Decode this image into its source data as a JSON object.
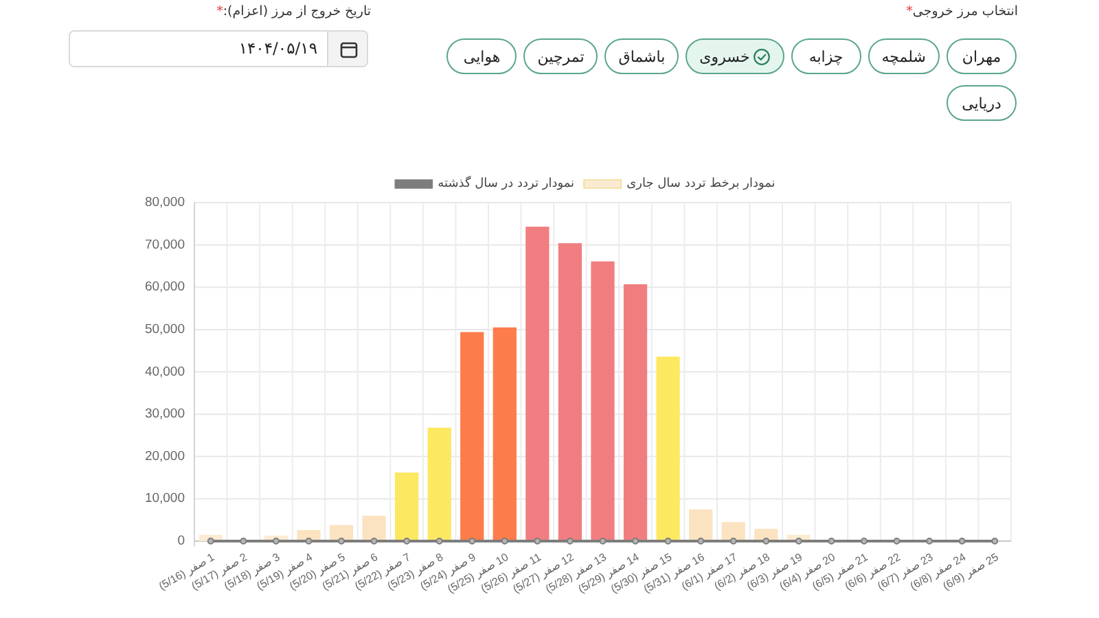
{
  "chart_data": [
    {
      "type": "other",
      "annotations": [
        "انتخاب مرز خروجی*",
        "تاریخ خروج از مرز (اعزام):*",
        "۱۴۰۴/۰۵/۱۹"
      ],
      "categories": [
        "مهران",
        "شلمچه",
        "چزابه",
        "خسروی",
        "باشماق",
        "تمرچین",
        "هوایی",
        "دریایی"
      ],
      "colors": [
        "#ffffff",
        "#ffffff",
        "#ffffff",
        "#e4f5ee",
        "#ffffff",
        "#ffffff",
        "#ffffff",
        "#ffffff"
      ]
    },
    {
      "type": "bar",
      "categories": [
        "1 صفر (5/16)",
        "2 صفر (5/17)",
        "3 صفر (5/18)",
        "4 صفر (5/19)",
        "5 صفر (5/20)",
        "6 صفر (5/21)",
        "7 صفر (5/22)",
        "8 صفر (5/23)",
        "9 صفر (5/24)",
        "10 صفر (5/25)",
        "11 صفر (5/26)",
        "12 صفر (5/27)",
        "13 صفر (5/28)",
        "14 صفر (5/29)",
        "15 صفر (5/30)",
        "16 صفر (5/31)",
        "17 صفر (6/1)",
        "18 صفر (6/2)",
        "19 صفر (6/3)",
        "20 صفر (6/4)",
        "21 صفر (6/5)",
        "22 صفر (6/6)",
        "23 صفر (6/7)",
        "24 صفر (6/8)",
        "25 صفر (6/9)"
      ],
      "ylim": [
        0,
        80000
      ],
      "yticks": [
        0,
        {
          "value": 10000,
          "label": "10,000"
        },
        {
          "value": 20000,
          "label": "20,000"
        },
        {
          "value": 30000,
          "label": "30,000"
        },
        {
          "value": 40000,
          "label": "40,000"
        },
        {
          "value": 50000,
          "label": "50,000"
        },
        {
          "value": 60000,
          "label": "60,000"
        },
        {
          "value": 70000,
          "label": "70,000"
        },
        {
          "value": 80000,
          "label": "80,000"
        }
      ],
      "grid": true,
      "legend": "top",
      "marker": "circle",
      "series": [
        {
          "name": "نمودار تردد در سال گذشته",
          "type": "line",
          "color": "#7d7d7d",
          "values": [
            0,
            0,
            0,
            0,
            0,
            0,
            0,
            0,
            0,
            0,
            0,
            0,
            0,
            0,
            0,
            0,
            0,
            0,
            0,
            0,
            0,
            0,
            0,
            0,
            0
          ]
        },
        {
          "name": "نمودار برخط تردد سال جاری",
          "type": "bar",
          "colors": [
            "#fcebd3",
            null,
            "#fcebd3",
            "#fbe3c1",
            "#fbe3c1",
            "#fbe3c1",
            "#fde862",
            "#fde862",
            "#fc7c4b",
            "#fc7c4b",
            "#f07e80",
            "#f07e80",
            "#f07e80",
            "#f07e80",
            "#fde862",
            "#fbe3c1",
            "#fbe3c1",
            "#fbe3c1",
            "#fcebd3",
            null,
            null,
            null,
            null,
            null,
            null
          ],
          "values": [
            1500,
            0,
            1300,
            2600,
            3800,
            6000,
            16200,
            26800,
            49400,
            50500,
            74300,
            70400,
            66100,
            60700,
            43600,
            7500,
            4500,
            2900,
            1500,
            0,
            0,
            0,
            0,
            0,
            0
          ]
        }
      ]
    }
  ]
}
